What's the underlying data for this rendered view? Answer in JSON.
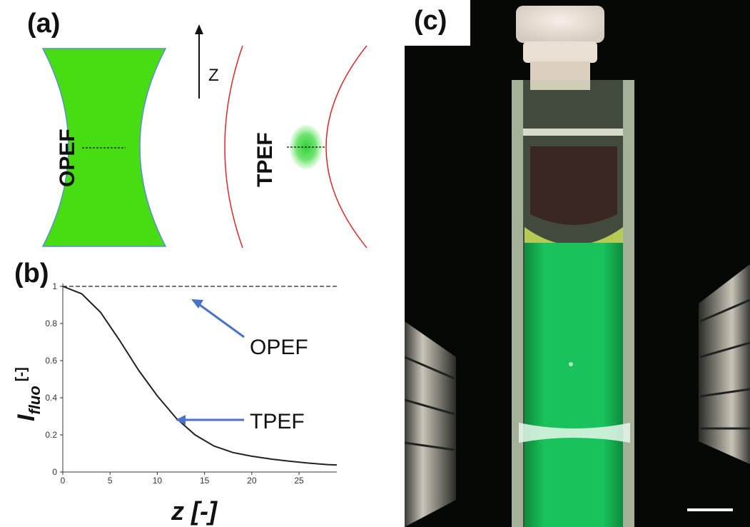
{
  "panels": {
    "a": {
      "label": "(a)",
      "z_axis_label": "Z",
      "opef_label": "OPEF",
      "tpef_label": "TPEF"
    },
    "b": {
      "label": "(b)",
      "annotation_opef": "OPEF",
      "annotation_tpef": "TPEF"
    },
    "c": {
      "label": "(c)"
    }
  },
  "colors": {
    "beam_fill": "#47dd12",
    "beam_edge": "#5b8fd6",
    "tpef_curve": "#e0262a",
    "arrow": "#4a72c6",
    "solution_green": "#19c25a",
    "photo_bg": "#050805"
  },
  "chart_data": {
    "type": "line",
    "xlabel_main": "z",
    "xlabel_unit": "[-]",
    "ylabel_main": "I",
    "ylabel_sub": "fluo",
    "ylabel_unit": "[-]",
    "xlim": [
      0,
      29
    ],
    "ylim": [
      0,
      1
    ],
    "xticks": [
      0,
      5,
      10,
      15,
      20,
      25
    ],
    "yticks": [
      0,
      0.2,
      0.4,
      0.6,
      0.8,
      1
    ],
    "series": [
      {
        "name": "OPEF",
        "style": "dashed",
        "x": [
          0,
          29
        ],
        "y": [
          1,
          1
        ]
      },
      {
        "name": "TPEF",
        "style": "solid",
        "x": [
          0,
          2,
          4,
          6,
          8,
          10,
          12,
          14,
          16,
          18,
          20,
          22,
          24,
          26,
          28,
          29
        ],
        "y": [
          1.0,
          0.96,
          0.86,
          0.71,
          0.55,
          0.41,
          0.29,
          0.2,
          0.14,
          0.105,
          0.085,
          0.07,
          0.058,
          0.048,
          0.04,
          0.038
        ]
      }
    ]
  }
}
